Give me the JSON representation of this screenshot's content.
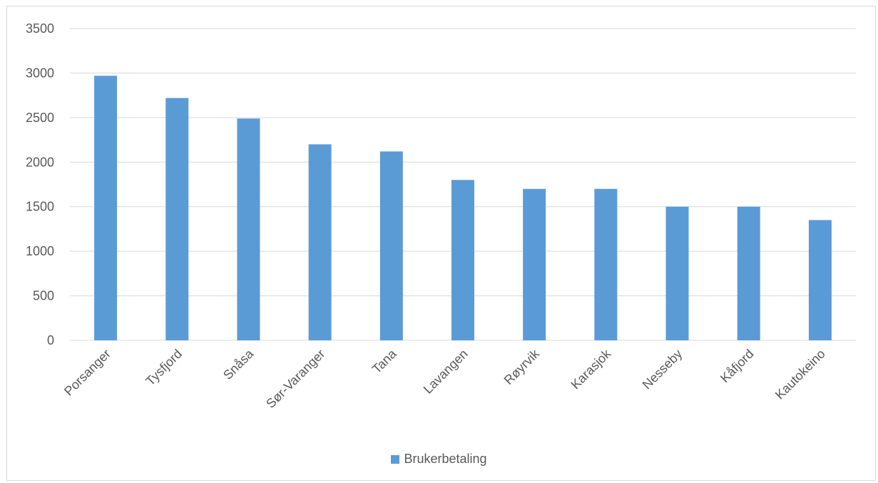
{
  "chart_data": {
    "type": "bar",
    "categories": [
      "Porsanger",
      "Tysfjord",
      "Snåsa",
      "Sør-Varanger",
      "Tana",
      "Lavangen",
      "Røyrvik",
      "Karasjok",
      "Nesseby",
      "Kåfjord",
      "Kautokeino"
    ],
    "series": [
      {
        "name": "Brukerbetaling",
        "values": [
          2970,
          2720,
          2490,
          2200,
          2120,
          1800,
          1700,
          1700,
          1500,
          1500,
          1350
        ],
        "color": "#5b9bd5"
      }
    ],
    "yticks": [
      "0",
      "500",
      "1000",
      "1500",
      "2000",
      "2500",
      "3000",
      "3500"
    ],
    "ylim": [
      0,
      3500
    ],
    "grid": true,
    "legend_position": "bottom",
    "gridline_color": "#d9d9d9",
    "text_color": "#595959"
  }
}
